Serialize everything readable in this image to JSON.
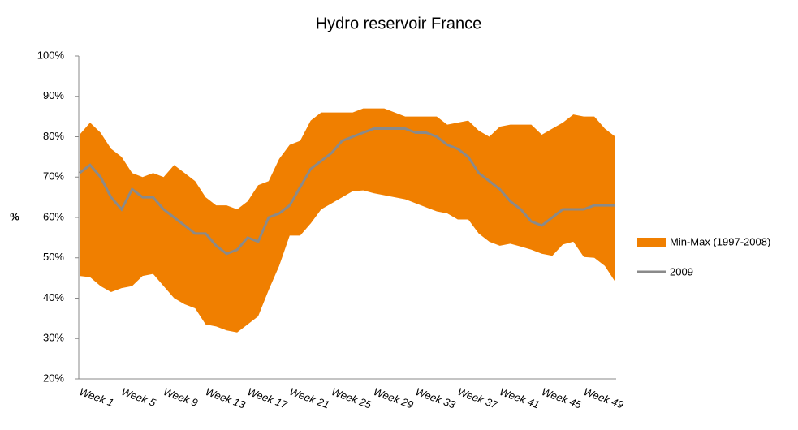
{
  "chart_data": {
    "type": "band-line",
    "title": "Hydro reservoir France",
    "y_label": "%",
    "categories": [
      "Week 1",
      null,
      null,
      null,
      "Week 5",
      null,
      null,
      null,
      "Week 9",
      null,
      null,
      null,
      "Week 13",
      null,
      null,
      null,
      "Week 17",
      null,
      null,
      null,
      "Week 21",
      null,
      null,
      null,
      "Week 25",
      null,
      null,
      null,
      "Week 29",
      null,
      null,
      null,
      "Week 33",
      null,
      null,
      null,
      "Week 37",
      null,
      null,
      null,
      "Week 41",
      null,
      null,
      null,
      "Week 45",
      null,
      null,
      null,
      "Week 49",
      null,
      null,
      null
    ],
    "series": [
      {
        "name": "Min-Max (1997-2008)",
        "color": "#f07f00",
        "high": [
          80.5,
          83.5,
          81,
          77,
          75,
          71,
          70,
          71,
          70,
          73,
          71,
          69,
          65,
          63,
          63,
          62,
          64,
          68,
          69,
          74.5,
          78,
          79,
          84,
          86,
          86,
          86,
          86,
          87,
          87,
          87,
          86,
          85,
          85,
          85,
          85,
          83,
          83.5,
          84,
          81.5,
          80,
          82.5,
          83,
          83,
          83,
          80.5,
          82,
          83.5,
          85.5,
          85,
          85,
          82,
          80
        ],
        "low": [
          45.5,
          45.2,
          43,
          41.5,
          42.5,
          43,
          45.5,
          46,
          43,
          40,
          38.5,
          37.5,
          33.5,
          33,
          32,
          31.5,
          33.5,
          35.5,
          42,
          48,
          55.5,
          55.5,
          58.5,
          62,
          63.5,
          65,
          66.5,
          66.7,
          66,
          65.5,
          65,
          64.5,
          63.5,
          62.5,
          61.5,
          61,
          59.5,
          59.5,
          56,
          54,
          53,
          53.5,
          52.8,
          52,
          51,
          50.5,
          53.3,
          54,
          50.2,
          50,
          48,
          44
        ]
      },
      {
        "name": "2009",
        "color": "#8a8a8a",
        "values": [
          71,
          73,
          70,
          65,
          62,
          67,
          65,
          65,
          62,
          60,
          58,
          56,
          56,
          53,
          51,
          52,
          55,
          54,
          60,
          61,
          63,
          67.5,
          72,
          74,
          76,
          79,
          80,
          81,
          82,
          82,
          82,
          82,
          81,
          81,
          80,
          78,
          77,
          75,
          71,
          69,
          67,
          64,
          62,
          59,
          58,
          60,
          62,
          62,
          62,
          63,
          63,
          63
        ]
      }
    ],
    "ylim": [
      20,
      100
    ],
    "yticks": [
      {
        "value": 20,
        "label": "20%"
      },
      {
        "value": 30,
        "label": "30%"
      },
      {
        "value": 40,
        "label": "40%"
      },
      {
        "value": 50,
        "label": "50%"
      },
      {
        "value": 60,
        "label": "60%"
      },
      {
        "value": 70,
        "label": "70%"
      },
      {
        "value": 80,
        "label": "80%"
      },
      {
        "value": 90,
        "label": "90%"
      },
      {
        "value": 100,
        "label": "100%"
      }
    ]
  }
}
